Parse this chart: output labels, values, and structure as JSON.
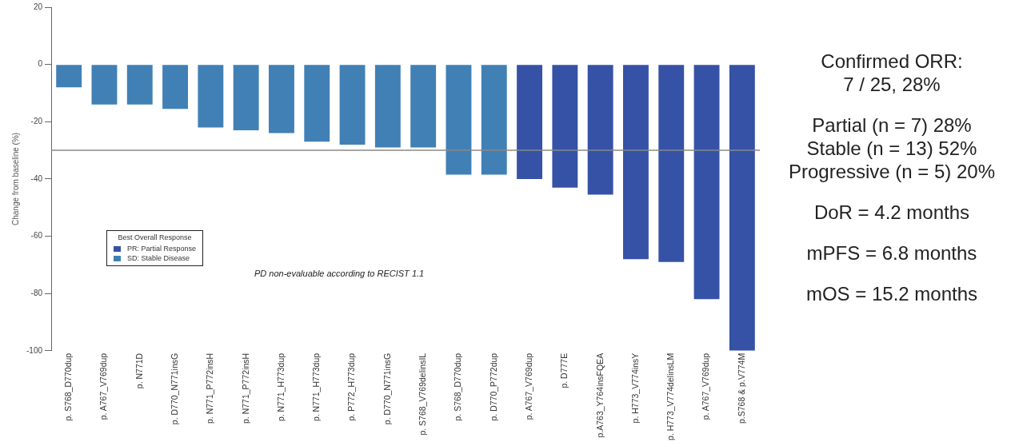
{
  "chart_data": {
    "type": "bar",
    "ylabel": "Change from baseline (%)",
    "legend_title": "Best Overall Response",
    "legend": "bottom left",
    "categories": [
      "p. S768_D770dup",
      "p. A767_V769dup",
      "p. N771D",
      "p. D770_N771insG",
      "p. N771_P772insH",
      "p. N771_P772insH",
      "p. N771_H773dup",
      "p. N771_H773dup",
      "p. P772_H773dup",
      "p. D770_N771insG",
      "p. S768_V769delinsIL",
      "p. S768_D770dup",
      "p. D770_P772dup",
      "p. A767_V769dup",
      "p. D777E",
      "p.A763_Y764insFQEA",
      "p. H773_V774insY",
      "p. H773_V774delinsLM",
      "p. A767_V769dup",
      "p.S768 & p.V774M"
    ],
    "series": [
      {
        "name": "PR: Partial Response",
        "color": "#3652a6",
        "values": [
          null,
          null,
          null,
          null,
          null,
          null,
          null,
          null,
          null,
          null,
          null,
          null,
          null,
          -40,
          -43,
          -45.5,
          -68,
          -69,
          -82,
          -100
        ]
      },
      {
        "name": "SD: Stable Disease",
        "color": "#4180b5",
        "values": [
          -8,
          -14,
          -14,
          -15.5,
          -22,
          -23,
          -24,
          -27,
          -28,
          -29,
          -29,
          -38.5,
          -38.5,
          null,
          null,
          null,
          null,
          null,
          null,
          null
        ]
      }
    ],
    "ylim": [
      -100,
      20
    ],
    "yticks": [
      20,
      0,
      -20,
      -40,
      -60,
      -80,
      -100
    ],
    "grid": false,
    "ref_lines": [
      {
        "axis": "y",
        "value": -30,
        "color": "#888888"
      }
    ],
    "annotations": [
      "PD non-evaluable according to RECIST 1.1",
      "Confirmed ORR:",
      "7 / 25, 28%",
      "Partial (n = 7) 28%",
      "Stable (n = 13) 52%",
      "Progressive (n = 5) 20%",
      "DoR = 4.2 months",
      "mPFS = 6.8 months",
      "mOS = 15.2 months"
    ]
  }
}
